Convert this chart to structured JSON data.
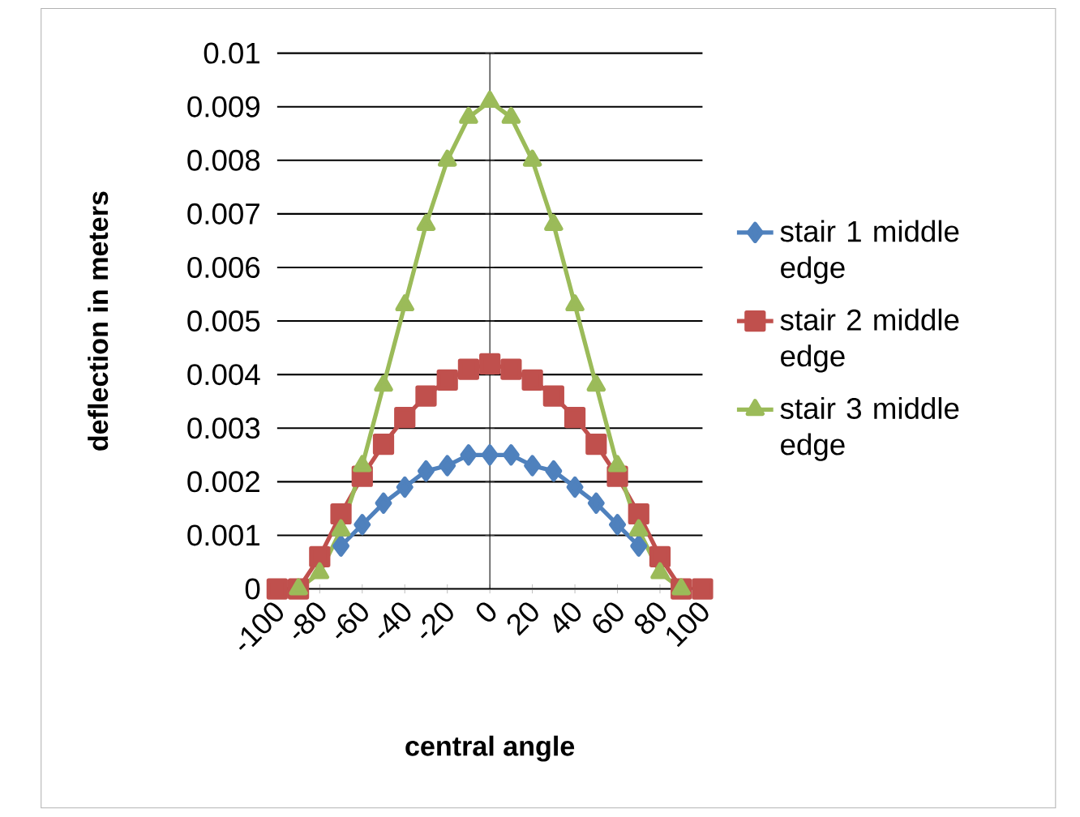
{
  "chart_data": {
    "type": "line",
    "xlabel": "central angle",
    "ylabel": "deflection in meters",
    "x": [
      -100,
      -90,
      -80,
      -70,
      -60,
      -50,
      -40,
      -30,
      -20,
      -10,
      0,
      10,
      20,
      30,
      40,
      50,
      60,
      70,
      80,
      90,
      100
    ],
    "series": [
      {
        "name": "stair 1 middle edge",
        "color": "#4f81bd",
        "marker": "diamond",
        "values": [
          null,
          null,
          null,
          0.0008,
          0.0012,
          0.0016,
          0.0019,
          0.0022,
          0.0023,
          0.0025,
          0.0025,
          0.0025,
          0.0023,
          0.0022,
          0.0019,
          0.0016,
          0.0012,
          0.0008,
          null,
          null,
          null
        ]
      },
      {
        "name": "stair 2 middle edge",
        "color": "#c0504d",
        "marker": "square",
        "values": [
          0,
          0,
          0.0006,
          0.0014,
          0.0021,
          0.0027,
          0.0032,
          0.0036,
          0.0039,
          0.0041,
          0.0042,
          0.0041,
          0.0039,
          0.0036,
          0.0032,
          0.0027,
          0.0021,
          0.0014,
          0.0006,
          0,
          0
        ]
      },
      {
        "name": "stair 3 middle edge",
        "color": "#9bbb59",
        "marker": "triangle",
        "values": [
          null,
          0,
          0.0003,
          0.0011,
          0.0023,
          0.0038,
          0.0053,
          0.0068,
          0.008,
          0.0088,
          0.0091,
          0.0088,
          0.008,
          0.0068,
          0.0053,
          0.0038,
          0.0023,
          0.0011,
          0.0003,
          0,
          null
        ]
      }
    ],
    "xlim": [
      -100,
      100
    ],
    "xticks": [
      -100,
      -80,
      -60,
      -40,
      -20,
      0,
      20,
      40,
      60,
      80,
      100
    ],
    "ylim": [
      0,
      0.01
    ],
    "yticks": [
      0,
      0.001,
      0.002,
      0.003,
      0.004,
      0.005,
      0.006,
      0.007,
      0.008,
      0.009,
      0.01
    ],
    "grid": "y",
    "legend": "right"
  }
}
